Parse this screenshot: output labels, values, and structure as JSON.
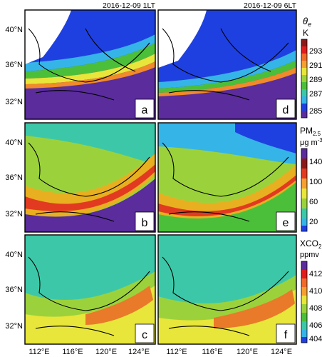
{
  "figure": {
    "times": [
      "2016-12-09 1LT",
      "2016-12-09 6LT"
    ],
    "lat_ticks": [
      "40°N",
      "36°N",
      "32°N"
    ],
    "lon_ticks": [
      "112°E",
      "116°E",
      "120°E",
      "124°E"
    ]
  },
  "chart_data": [
    {
      "type": "heatmap",
      "variable": "theta_e",
      "unit": "K",
      "colorbar_ticks": [
        293,
        291,
        289,
        287,
        285
      ],
      "colorbar_range": [
        284,
        295
      ],
      "panels": [
        {
          "label": "a",
          "time": "2016-12-09 1LT"
        },
        {
          "label": "d",
          "time": "2016-12-09 6LT"
        }
      ]
    },
    {
      "type": "heatmap",
      "variable": "PM2.5",
      "unit": "ug m-3",
      "colorbar_ticks": [
        140,
        100,
        60,
        20
      ],
      "colorbar_range": [
        0,
        160
      ],
      "panels": [
        {
          "label": "b",
          "time": "2016-12-09 1LT"
        },
        {
          "label": "e",
          "time": "2016-12-09 6LT"
        }
      ]
    },
    {
      "type": "heatmap",
      "variable": "XCO2",
      "unit": "ppmv",
      "colorbar_ticks": [
        412,
        410,
        408,
        406,
        404
      ],
      "colorbar_range": [
        403,
        413
      ],
      "panels": [
        {
          "label": "c",
          "time": "2016-12-09 1LT"
        },
        {
          "label": "f",
          "time": "2016-12-09 6LT"
        }
      ]
    }
  ]
}
